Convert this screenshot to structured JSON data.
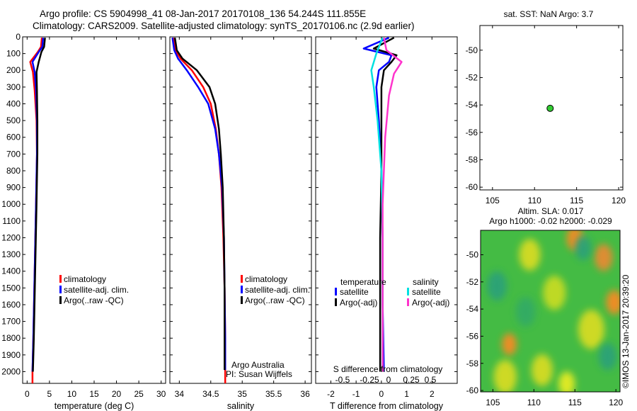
{
  "titles": {
    "line1": "Argo profile: CS 5904998_41 08-Jan-2017 20170108_136 54.244S 111.855E",
    "line2": "Climatology: CARS2009. Satellite-adjusted climatology: synTS_20170106.nc (2.9d earlier)"
  },
  "colors": {
    "climatology": "#ff0000",
    "satellite": "#0000ff",
    "argo": "#000000",
    "sal_satellite": "#00e0e0",
    "sal_argo": "#ff33cc"
  },
  "chart_data": [
    {
      "type": "line",
      "xlabel": "temperature (deg C)",
      "xlim": [
        -1,
        31
      ],
      "xticks": [
        0,
        5,
        10,
        15,
        20,
        25,
        30
      ],
      "ylim": [
        2070,
        0
      ],
      "yticks": [
        0,
        100,
        200,
        300,
        400,
        500,
        600,
        700,
        800,
        900,
        1000,
        1100,
        1200,
        1300,
        1400,
        1500,
        1600,
        1700,
        1800,
        1900,
        2000
      ],
      "legend": [
        "climatology",
        "satellite-adj. clim.",
        "Argo(..raw -QC)"
      ],
      "series": [
        {
          "name": "climatology",
          "color": "#ff0000",
          "points": [
            [
              3.3,
              5
            ],
            [
              3.1,
              60
            ],
            [
              2.4,
              90
            ],
            [
              0.7,
              150
            ],
            [
              1.3,
              210
            ],
            [
              1.7,
              320
            ],
            [
              2.1,
              500
            ],
            [
              2.2,
              700
            ],
            [
              2.0,
              1000
            ],
            [
              1.7,
              1400
            ],
            [
              1.4,
              1800
            ],
            [
              1.2,
              2000
            ],
            [
              1.2,
              2070
            ]
          ]
        },
        {
          "name": "satellite-adj. clim.",
          "color": "#0000ff",
          "points": [
            [
              3.6,
              5
            ],
            [
              3.4,
              60
            ],
            [
              2.6,
              90
            ],
            [
              1.2,
              150
            ],
            [
              1.7,
              210
            ],
            [
              2.0,
              320
            ],
            [
              2.2,
              500
            ],
            [
              2.2,
              700
            ],
            [
              2.0,
              1000
            ],
            [
              1.7,
              1400
            ],
            [
              1.4,
              1800
            ],
            [
              1.2,
              2000
            ]
          ]
        },
        {
          "name": "Argo(..raw -QC)",
          "color": "#000000",
          "points": [
            [
              4.0,
              5
            ],
            [
              3.8,
              60
            ],
            [
              3.2,
              90
            ],
            [
              2.6,
              150
            ],
            [
              2.1,
              210
            ],
            [
              2.2,
              320
            ],
            [
              2.3,
              500
            ],
            [
              2.3,
              700
            ],
            [
              2.1,
              1000
            ],
            [
              1.8,
              1400
            ],
            [
              1.5,
              1800
            ],
            [
              1.3,
              2000
            ]
          ]
        }
      ]
    },
    {
      "type": "line",
      "xlabel": "salinity",
      "xlim": [
        33.85,
        36.1
      ],
      "xticks": [
        34,
        34.5,
        35,
        35.5,
        36
      ],
      "xtick_labels": [
        "34",
        "34.5",
        "35",
        "35.5",
        "36"
      ],
      "ylim": [
        2070,
        0
      ],
      "legend": [
        "climatology",
        "satellite-adj. clim.",
        "Argo(..raw -QC)"
      ],
      "annotation": [
        "Argo Australia",
        "PI: Susan Wijffels"
      ],
      "series": [
        {
          "name": "climatology",
          "color": "#ff0000",
          "points": [
            [
              33.91,
              5
            ],
            [
              33.94,
              80
            ],
            [
              34.02,
              130
            ],
            [
              34.2,
              200
            ],
            [
              34.38,
              300
            ],
            [
              34.5,
              400
            ],
            [
              34.58,
              550
            ],
            [
              34.63,
              700
            ],
            [
              34.67,
              900
            ],
            [
              34.7,
              1200
            ],
            [
              34.72,
              1500
            ],
            [
              34.73,
              1800
            ],
            [
              34.73,
              2000
            ],
            [
              34.73,
              2070
            ]
          ]
        },
        {
          "name": "satellite-adj. clim.",
          "color": "#0000ff",
          "points": [
            [
              33.89,
              5
            ],
            [
              33.92,
              80
            ],
            [
              33.98,
              130
            ],
            [
              34.12,
              200
            ],
            [
              34.3,
              300
            ],
            [
              34.46,
              400
            ],
            [
              34.57,
              550
            ],
            [
              34.63,
              700
            ],
            [
              34.68,
              900
            ],
            [
              34.71,
              1200
            ],
            [
              34.72,
              1500
            ],
            [
              34.73,
              1800
            ],
            [
              34.73,
              1990
            ]
          ]
        },
        {
          "name": "Argo(..raw -QC)",
          "color": "#000000",
          "points": [
            [
              33.93,
              5
            ],
            [
              33.96,
              80
            ],
            [
              34.05,
              130
            ],
            [
              34.28,
              200
            ],
            [
              34.48,
              300
            ],
            [
              34.57,
              400
            ],
            [
              34.63,
              550
            ],
            [
              34.66,
              700
            ],
            [
              34.69,
              900
            ],
            [
              34.71,
              1200
            ],
            [
              34.72,
              1500
            ],
            [
              34.72,
              1800
            ],
            [
              34.72,
              1990
            ]
          ]
        }
      ]
    },
    {
      "type": "line",
      "xlabel": "T difference from climatology",
      "x2label": "S difference from climatology",
      "xlim": [
        -2.6,
        3.0
      ],
      "xticks": [
        -2,
        -1,
        0,
        1,
        2
      ],
      "xtick_labels": [
        "-2",
        "-1",
        "0",
        "1",
        "2"
      ],
      "x2ticks": [
        "-0.5",
        "-0.25",
        "0",
        "0.25",
        "0.5"
      ],
      "ylim": [
        2070,
        0
      ],
      "legend_groups": [
        "temperature",
        "salinity"
      ],
      "legend": [
        "satellite",
        "Argo(-adj)",
        "satellite",
        "Argo(-adj)"
      ],
      "series": [
        {
          "name": "satellite",
          "group": "temperature",
          "color": "#0000ff",
          "points": [
            [
              0.3,
              5
            ],
            [
              -0.7,
              70
            ],
            [
              0.4,
              110
            ],
            [
              0.3,
              150
            ],
            [
              -0.1,
              200
            ],
            [
              -0.2,
              300
            ],
            [
              -0.1,
              500
            ],
            [
              0.0,
              800
            ],
            [
              0.05,
              1200
            ],
            [
              0.05,
              1600
            ],
            [
              0.1,
              2000
            ]
          ]
        },
        {
          "name": "Argo(-adj)",
          "group": "temperature",
          "color": "#000000",
          "points": [
            [
              0.5,
              5
            ],
            [
              -0.3,
              70
            ],
            [
              0.6,
              110
            ],
            [
              0.4,
              150
            ],
            [
              0.1,
              200
            ],
            [
              0.0,
              300
            ],
            [
              0.0,
              500
            ],
            [
              0.0,
              800
            ],
            [
              -0.05,
              1200
            ],
            [
              -0.05,
              1600
            ],
            [
              -0.05,
              2000
            ]
          ]
        },
        {
          "name": "satellite",
          "group": "salinity",
          "color": "#00e0e0",
          "points": [
            [
              0.05,
              5
            ],
            [
              -0.2,
              100
            ],
            [
              -0.4,
              200
            ],
            [
              -0.3,
              300
            ],
            [
              -0.15,
              500
            ],
            [
              0.0,
              800
            ],
            [
              0.05,
              1200
            ],
            [
              0.05,
              1600
            ],
            [
              0.05,
              2000
            ]
          ]
        },
        {
          "name": "Argo(-adj)",
          "group": "salinity",
          "color": "#ff33cc",
          "points": [
            [
              0.1,
              5
            ],
            [
              0.2,
              80
            ],
            [
              0.8,
              150
            ],
            [
              0.5,
              220
            ],
            [
              0.3,
              350
            ],
            [
              0.15,
              600
            ],
            [
              0.05,
              1000
            ],
            [
              0.05,
              1500
            ],
            [
              0.05,
              2000
            ]
          ]
        }
      ]
    },
    {
      "type": "scatter",
      "title": "sat. SST: NaN Argo: 3.7",
      "xlim": [
        103.5,
        120.5
      ],
      "ylim": [
        -60.2,
        -48.2
      ],
      "xticks": [
        105,
        110,
        115,
        120
      ],
      "yticks": [
        -50,
        -52,
        -54,
        -56,
        -58,
        -60
      ],
      "points": [
        [
          111.855,
          -54.244
        ]
      ],
      "point_color": "#33cc33"
    },
    {
      "type": "heatmap",
      "title_lines": [
        "Altim. SLA: 0.017",
        "Argo h1000: -0.02 h2000: -0.029"
      ],
      "xlim": [
        103.5,
        120.5
      ],
      "ylim": [
        -60.1,
        -48.2
      ],
      "xticks": [
        105,
        110,
        115,
        120
      ],
      "yticks": [
        -50,
        -52,
        -54,
        -56,
        -58,
        -60
      ],
      "base_color": "#44bb44",
      "blobs": [
        {
          "lon": 115.0,
          "lat": -48.8,
          "r": 1.0,
          "color": "#ff8822"
        },
        {
          "lon": 118.5,
          "lat": -50.2,
          "r": 1.1,
          "color": "#ee8833"
        },
        {
          "lon": 119.8,
          "lat": -53.5,
          "r": 1.0,
          "color": "#ff8822"
        },
        {
          "lon": 107.0,
          "lat": -56.6,
          "r": 0.9,
          "color": "#ff8822"
        },
        {
          "lon": 105.5,
          "lat": -52.3,
          "r": 1.2,
          "color": "#2aa07a"
        },
        {
          "lon": 109.5,
          "lat": -50.0,
          "r": 1.3,
          "color": "#dddd22"
        },
        {
          "lon": 112.5,
          "lat": -52.8,
          "r": 1.4,
          "color": "#ccdd22"
        },
        {
          "lon": 117.0,
          "lat": -55.5,
          "r": 1.6,
          "color": "#dddd22"
        },
        {
          "lon": 106.5,
          "lat": -59.0,
          "r": 1.4,
          "color": "#dddd22"
        },
        {
          "lon": 111.0,
          "lat": -58.5,
          "r": 1.3,
          "color": "#dddd22"
        },
        {
          "lon": 116.0,
          "lat": -49.5,
          "r": 1.0,
          "color": "#2aa07a"
        },
        {
          "lon": 119.0,
          "lat": -57.5,
          "r": 1.1,
          "color": "#2aa07a"
        },
        {
          "lon": 109.0,
          "lat": -54.2,
          "r": 1.2,
          "color": "#33aa66"
        },
        {
          "lon": 114.0,
          "lat": -59.5,
          "r": 1.0,
          "color": "#eeee22"
        }
      ]
    }
  ],
  "watermark": "©IMOS 13-Jan-2017 20:39:20"
}
